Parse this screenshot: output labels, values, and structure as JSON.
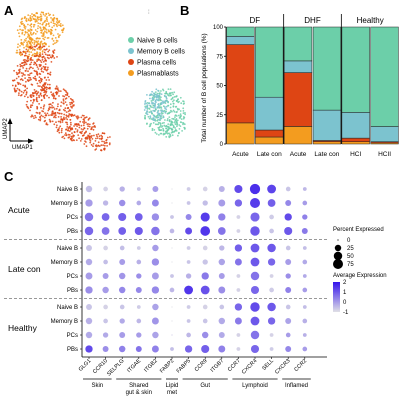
{
  "panels": {
    "a": {
      "label": "A"
    },
    "b": {
      "label": "B"
    },
    "c": {
      "label": "C"
    }
  },
  "umap": {
    "axis_x": "UMAP1",
    "axis_y": "UMAP2",
    "legend": [
      {
        "name": "Naive B cells",
        "color": "#6ccfa9"
      },
      {
        "name": "Memory B cells",
        "color": "#7cc3cf"
      },
      {
        "name": "Plasma cells",
        "color": "#de4514"
      },
      {
        "name": "Plasmablasts",
        "color": "#f39c1f"
      }
    ]
  },
  "chart_data": [
    {
      "type": "bar",
      "stacked": true,
      "ylabel": "Total number of B cell populations (%)",
      "ylim": [
        0,
        100
      ],
      "yticks": [
        "0",
        "25",
        "50",
        "75",
        "100"
      ],
      "groups": [
        {
          "label": "DF",
          "categories": [
            "Acute",
            "Late con"
          ]
        },
        {
          "label": "DHF",
          "categories": [
            "Acute",
            "Late con"
          ]
        },
        {
          "label": "Healthy",
          "categories": [
            "HCI",
            "HCII"
          ]
        }
      ],
      "xticks": [
        "Acute",
        "Late con",
        "Acute",
        "Late con",
        "HCI",
        "HCII"
      ],
      "series": [
        {
          "name": "Plasmablasts",
          "color": "#f39c1f",
          "values": [
            18,
            6,
            15,
            2,
            2,
            1
          ]
        },
        {
          "name": "Plasma cells",
          "color": "#de4514",
          "values": [
            67,
            6,
            46,
            1,
            3,
            1
          ]
        },
        {
          "name": "Memory B cells",
          "color": "#7cc3cf",
          "values": [
            7,
            28,
            10,
            26,
            22,
            13
          ]
        },
        {
          "name": "Naive B cells",
          "color": "#6ccfa9",
          "values": [
            8,
            60,
            29,
            71,
            73,
            85
          ]
        }
      ]
    },
    {
      "type": "dotplot",
      "genes": [
        "GLG1",
        "CCR10",
        "SELPLG",
        "ITGAE",
        "ITGB2",
        "FABP2",
        "FABP5",
        "CCR9",
        "ITGB7",
        "CCR7",
        "CXCR4",
        "SELL",
        "CXCR3",
        "CCR2"
      ],
      "gene_groups": [
        {
          "label": "Skin",
          "label2": "",
          "from": 0,
          "to": 1
        },
        {
          "label": "Shared",
          "label2": "gut & skin",
          "from": 2,
          "to": 4
        },
        {
          "label": "Lipid",
          "label2": "met",
          "from": 5,
          "to": 5
        },
        {
          "label": "Gut",
          "label2": "",
          "from": 6,
          "to": 8
        },
        {
          "label": "Lymphoid",
          "label2": "",
          "from": 9,
          "to": 11
        },
        {
          "label": "Inflamed",
          "label2": "",
          "from": 12,
          "to": 13
        }
      ],
      "condition_groups": [
        {
          "label": "Acute",
          "rows": [
            "Naive B",
            "Memory B",
            "PCs",
            "PBs"
          ]
        },
        {
          "label": "Late con",
          "rows": [
            "Naive B",
            "Memory B",
            "PCs",
            "PBs"
          ]
        },
        {
          "label": "Healthy",
          "rows": [
            "Naive B",
            "Memory B",
            "PCs",
            "PBs"
          ]
        }
      ],
      "size_legend": {
        "title": "Percent Expressed",
        "values": [
          "0",
          "25",
          "50",
          "75"
        ]
      },
      "color_legend": {
        "title": "Average Expression",
        "ticks": [
          "2",
          "1",
          "0",
          "-1"
        ],
        "range": [
          -1,
          2
        ]
      },
      "percent_expressed": [
        [
          25,
          10,
          15,
          5,
          20,
          0,
          5,
          10,
          20,
          45,
          80,
          55,
          10,
          5
        ],
        [
          35,
          15,
          25,
          10,
          30,
          0,
          5,
          15,
          30,
          35,
          75,
          40,
          20,
          10
        ],
        [
          50,
          40,
          45,
          40,
          35,
          5,
          20,
          60,
          35,
          5,
          60,
          10,
          35,
          15
        ],
        [
          50,
          40,
          40,
          45,
          50,
          10,
          30,
          70,
          40,
          5,
          65,
          10,
          45,
          20
        ],
        [
          20,
          10,
          10,
          5,
          25,
          0,
          5,
          10,
          15,
          35,
          55,
          50,
          10,
          5
        ],
        [
          25,
          10,
          20,
          10,
          35,
          0,
          5,
          15,
          25,
          30,
          55,
          35,
          20,
          10
        ],
        [
          30,
          20,
          25,
          15,
          30,
          5,
          15,
          35,
          20,
          5,
          50,
          5,
          15,
          5
        ],
        [
          35,
          25,
          25,
          20,
          35,
          10,
          55,
          55,
          30,
          5,
          45,
          10,
          20,
          10
        ],
        [
          20,
          10,
          10,
          5,
          25,
          0,
          5,
          10,
          10,
          35,
          65,
          50,
          10,
          5
        ],
        [
          25,
          10,
          15,
          10,
          30,
          0,
          5,
          10,
          25,
          30,
          55,
          35,
          20,
          10
        ],
        [
          25,
          15,
          20,
          15,
          25,
          0,
          10,
          25,
          20,
          5,
          50,
          5,
          10,
          5
        ],
        [
          35,
          20,
          25,
          20,
          30,
          5,
          35,
          45,
          30,
          5,
          45,
          5,
          20,
          10
        ]
      ],
      "average_expression": [
        [
          -0.5,
          -0.8,
          -0.3,
          -0.6,
          0.0,
          -1,
          -0.7,
          -0.8,
          -0.3,
          1.2,
          1.6,
          1.3,
          -0.6,
          -0.4
        ],
        [
          0.0,
          -0.4,
          0.2,
          -0.2,
          0.3,
          -1,
          -0.6,
          -0.5,
          0.0,
          0.8,
          1.4,
          0.9,
          0.3,
          0.0
        ],
        [
          0.6,
          0.8,
          0.9,
          0.9,
          0.2,
          -0.6,
          0.3,
          1.4,
          0.4,
          -0.8,
          0.8,
          -0.7,
          1.2,
          0.4
        ],
        [
          0.8,
          0.6,
          0.9,
          1.0,
          0.6,
          -0.4,
          1.2,
          1.5,
          0.6,
          -0.8,
          1.0,
          -0.6,
          1.0,
          0.5
        ],
        [
          -0.6,
          -0.8,
          -0.5,
          -0.7,
          0.0,
          -1,
          -0.7,
          -0.8,
          -0.4,
          0.9,
          1.0,
          1.0,
          -0.6,
          -0.5
        ],
        [
          -0.2,
          -0.5,
          0.0,
          -0.3,
          0.2,
          -1,
          -0.6,
          -0.6,
          -0.1,
          0.6,
          1.0,
          0.8,
          0.0,
          -0.2
        ],
        [
          0.0,
          0.0,
          0.1,
          0.2,
          0.0,
          -0.6,
          -0.3,
          0.5,
          0.0,
          -0.8,
          0.6,
          -0.8,
          0.2,
          -0.2
        ],
        [
          0.2,
          0.0,
          0.3,
          0.3,
          0.3,
          -0.4,
          1.5,
          1.1,
          0.2,
          -0.8,
          0.8,
          -0.7,
          0.4,
          0.0
        ],
        [
          -0.6,
          -0.8,
          -0.6,
          -0.7,
          -0.1,
          -1,
          -0.7,
          -0.8,
          -0.6,
          0.8,
          1.2,
          1.0,
          -0.6,
          -0.5
        ],
        [
          -0.3,
          -0.6,
          -0.2,
          -0.4,
          0.1,
          -1,
          -0.6,
          -0.6,
          -0.2,
          0.5,
          1.0,
          0.8,
          -0.1,
          -0.3
        ],
        [
          -0.2,
          -0.2,
          0.0,
          0.0,
          -0.1,
          -0.7,
          -0.4,
          0.2,
          -0.2,
          -0.8,
          0.6,
          -0.8,
          0.0,
          -0.3
        ],
        [
          1.2,
          0.2,
          0.4,
          0.6,
          0.4,
          -0.5,
          0.8,
          0.9,
          0.4,
          -0.8,
          0.8,
          -0.7,
          0.3,
          0.0
        ]
      ]
    }
  ]
}
